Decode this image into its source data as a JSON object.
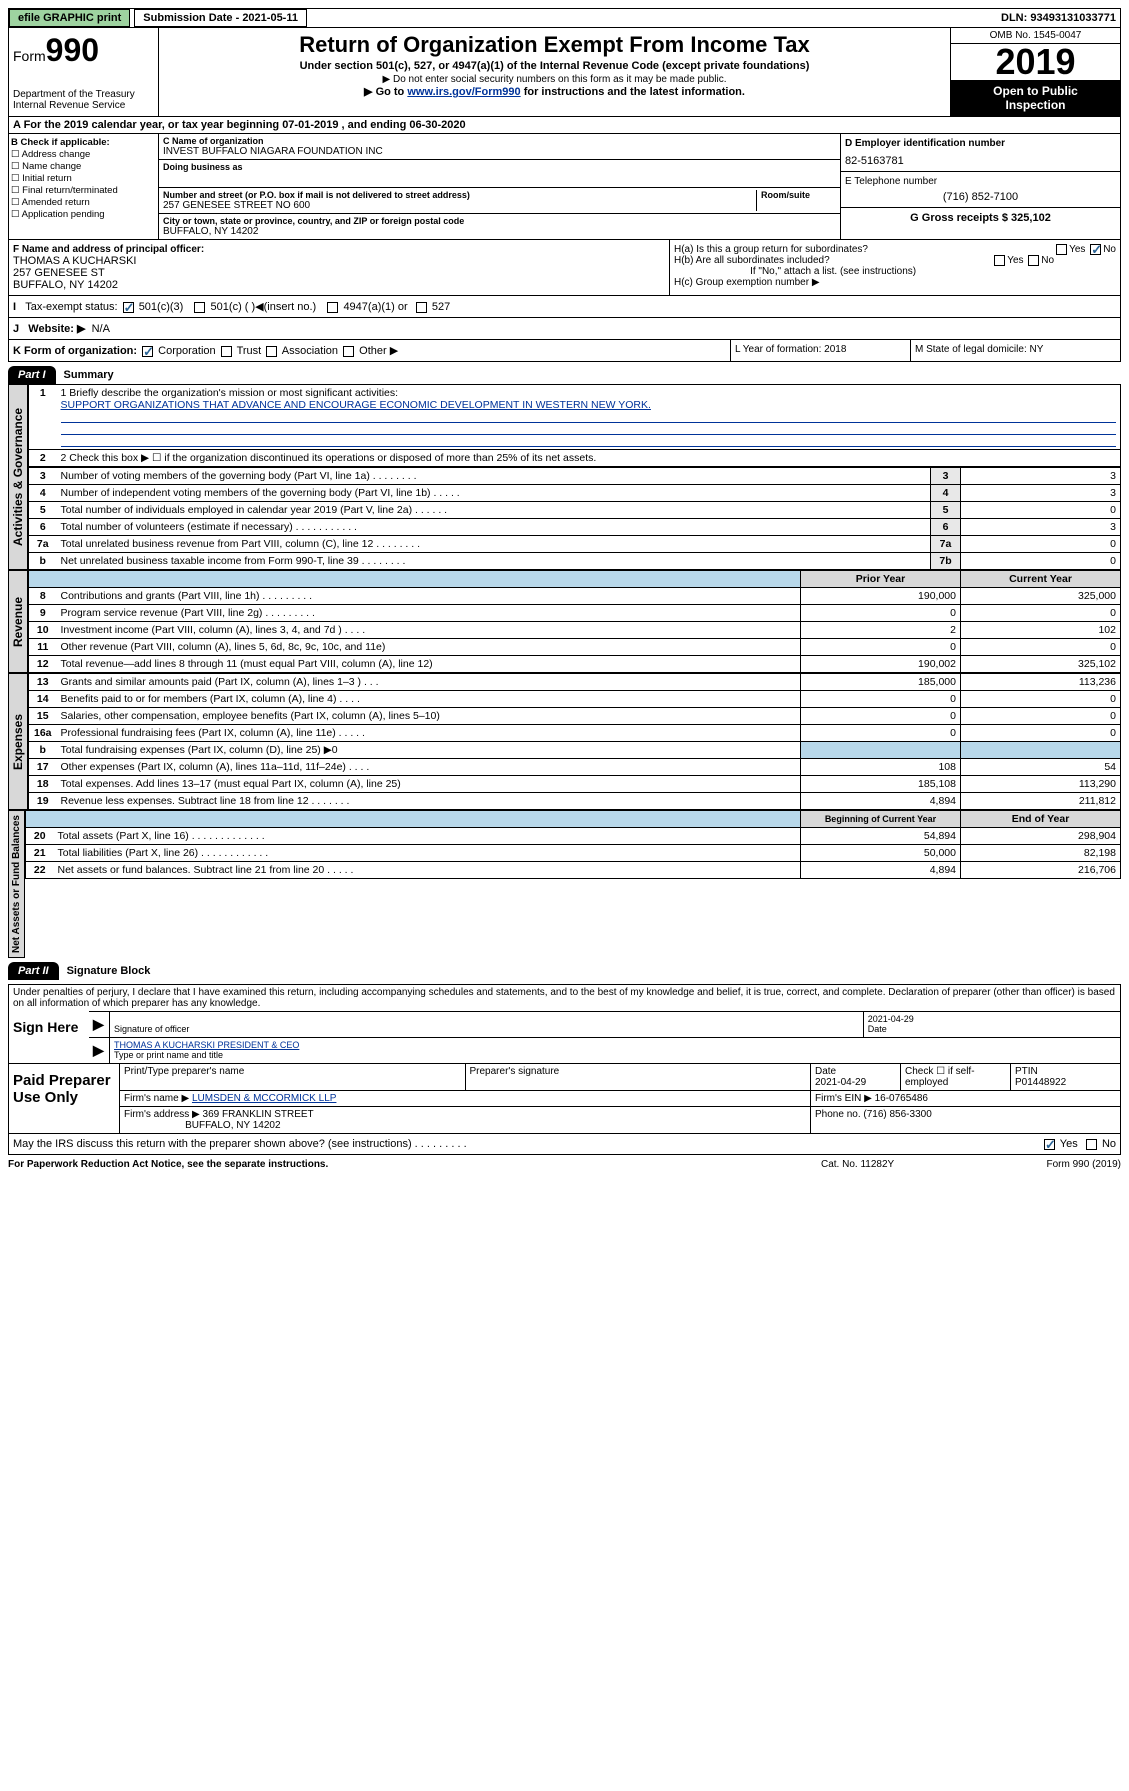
{
  "topbar": {
    "efile": "efile GRAPHIC print",
    "submission": "Submission Date - 2021-05-11",
    "dln": "DLN: 93493131033771"
  },
  "header": {
    "form_label": "Form",
    "form_num": "990",
    "dept": "Department of the Treasury Internal Revenue Service",
    "title": "Return of Organization Exempt From Income Tax",
    "sub1": "Under section 501(c), 527, or 4947(a)(1) of the Internal Revenue Code (except private foundations)",
    "sub2": "▶ Do not enter social security numbers on this form as it may be made public.",
    "sub3_prefix": "▶ Go to ",
    "sub3_link": "www.irs.gov/Form990",
    "sub3_suffix": " for instructions and the latest information.",
    "omb": "OMB No. 1545-0047",
    "year": "2019",
    "public1": "Open to Public",
    "public2": "Inspection"
  },
  "period": "A For the 2019 calendar year, or tax year beginning 07-01-2019     , and ending 06-30-2020",
  "boxB": {
    "label": "B Check if applicable:",
    "addr": "☐ Address change",
    "name": "☐ Name change",
    "init": "☐ Initial return",
    "final": "☐ Final return/terminated",
    "amend": "☐ Amended return",
    "app": "☐ Application pending"
  },
  "boxC": {
    "name_label": "C Name of organization",
    "name_val": "INVEST BUFFALO NIAGARA FOUNDATION INC",
    "dba_label": "Doing business as",
    "addr_label": "Number and street (or P.O. box if mail is not delivered to street address)",
    "room_label": "Room/suite",
    "addr_val": "257 GENESEE STREET NO 600",
    "city_label": "City or town, state or province, country, and ZIP or foreign postal code",
    "city_val": "BUFFALO, NY  14202"
  },
  "boxD": {
    "ein_label": "D Employer identification number",
    "ein_val": "82-5163781",
    "tel_label": "E Telephone number",
    "tel_val": "(716) 852-7100",
    "gross_label": "G Gross receipts $ 325,102"
  },
  "boxF": {
    "label": "F  Name and address of principal officer:",
    "name": "THOMAS A KUCHARSKI",
    "addr1": "257 GENESEE ST",
    "addr2": "BUFFALO, NY  14202"
  },
  "boxH": {
    "ha": "H(a)  Is this a group return for subordinates?",
    "hb": "H(b)  Are all subordinates included?",
    "hb_note": "If \"No,\" attach a list. (see instructions)",
    "hc": "H(c)  Group exemption number ▶",
    "yes": "Yes",
    "no": "No"
  },
  "boxI": {
    "label": "Tax-exempt status:",
    "opt1": "501(c)(3)",
    "opt2": "501(c) (   )◀(insert no.)",
    "opt3": "4947(a)(1) or",
    "opt4": "527"
  },
  "boxJ": {
    "label": "Website: ▶",
    "val": "N/A"
  },
  "boxK": {
    "label": "K Form of organization:",
    "corp": "Corporation",
    "trust": "Trust",
    "assoc": "Association",
    "other": "Other ▶"
  },
  "boxL": {
    "label": "L Year of formation: 2018"
  },
  "boxM": {
    "label": "M State of legal domicile: NY"
  },
  "part1": {
    "tab": "Part I",
    "title": "Summary"
  },
  "summary": {
    "l1_label": "1  Briefly describe the organization's mission or most significant activities:",
    "l1_val": "SUPPORT ORGANIZATIONS THAT ADVANCE AND ENCOURAGE ECONOMIC DEVELOPMENT IN WESTERN NEW YORK.",
    "l2": "2   Check this box ▶ ☐  if the organization discontinued its operations or disposed of more than 25% of its net assets.",
    "rows": [
      {
        "n": "3",
        "d": "Number of voting members of the governing body (Part VI, line 1a)   .    .    .    .    .    .    .    .",
        "b": "3",
        "c": "3"
      },
      {
        "n": "4",
        "d": "Number of independent voting members of the governing body (Part VI, line 1b)   .    .    .    .    .",
        "b": "4",
        "c": "3"
      },
      {
        "n": "5",
        "d": "Total number of individuals employed in calendar year 2019 (Part V, line 2a)   .    .    .    .    .    .",
        "b": "5",
        "c": "0"
      },
      {
        "n": "6",
        "d": "Total number of volunteers (estimate if necessary)   .    .    .    .    .    .    .    .    .    .    .",
        "b": "6",
        "c": "3"
      },
      {
        "n": "7a",
        "d": "Total unrelated business revenue from Part VIII, column (C), line 12   .    .    .    .    .    .    .    .",
        "b": "7a",
        "c": "0"
      },
      {
        "n": "b",
        "d": "Net unrelated business taxable income from Form 990-T, line 39   .    .    .    .    .    .    .    .",
        "b": "7b",
        "c": "0"
      }
    ],
    "hdr_prior": "Prior Year",
    "hdr_curr": "Current Year",
    "rev": [
      {
        "n": "8",
        "d": "Contributions and grants (Part VIII, line 1h)   .    .    .    .    .    .    .    .    .",
        "p": "190,000",
        "c": "325,000"
      },
      {
        "n": "9",
        "d": "Program service revenue (Part VIII, line 2g)   .    .    .    .    .    .    .    .    .",
        "p": "0",
        "c": "0"
      },
      {
        "n": "10",
        "d": "Investment income (Part VIII, column (A), lines 3, 4, and 7d )   .    .    .    .",
        "p": "2",
        "c": "102"
      },
      {
        "n": "11",
        "d": "Other revenue (Part VIII, column (A), lines 5, 6d, 8c, 9c, 10c, and 11e)",
        "p": "0",
        "c": "0"
      },
      {
        "n": "12",
        "d": "Total revenue—add lines 8 through 11 (must equal Part VIII, column (A), line 12)",
        "p": "190,002",
        "c": "325,102"
      }
    ],
    "exp": [
      {
        "n": "13",
        "d": "Grants and similar amounts paid (Part IX, column (A), lines 1–3 )   .    .    .",
        "p": "185,000",
        "c": "113,236"
      },
      {
        "n": "14",
        "d": "Benefits paid to or for members (Part IX, column (A), line 4)   .    .    .    .",
        "p": "0",
        "c": "0"
      },
      {
        "n": "15",
        "d": "Salaries, other compensation, employee benefits (Part IX, column (A), lines 5–10)",
        "p": "0",
        "c": "0"
      },
      {
        "n": "16a",
        "d": "Professional fundraising fees (Part IX, column (A), line 11e)   .    .    .    .    .",
        "p": "0",
        "c": "0"
      },
      {
        "n": "b",
        "d": "Total fundraising expenses (Part IX, column (D), line 25) ▶0",
        "p": "",
        "c": "",
        "shade": true
      },
      {
        "n": "17",
        "d": "Other expenses (Part IX, column (A), lines 11a–11d, 11f–24e)   .    .    .    .",
        "p": "108",
        "c": "54"
      },
      {
        "n": "18",
        "d": "Total expenses. Add lines 13–17 (must equal Part IX, column (A), line 25)",
        "p": "185,108",
        "c": "113,290"
      },
      {
        "n": "19",
        "d": "Revenue less expenses. Subtract line 18 from line 12   .    .    .    .    .    .    .",
        "p": "4,894",
        "c": "211,812"
      }
    ],
    "hdr_beg": "Beginning of Current Year",
    "hdr_end": "End of Year",
    "net": [
      {
        "n": "20",
        "d": "Total assets (Part X, line 16)   .    .    .    .    .    .    .    .    .    .    .    .    .",
        "p": "54,894",
        "c": "298,904"
      },
      {
        "n": "21",
        "d": "Total liabilities (Part X, line 26)   .    .    .    .    .    .    .    .    .    .    .    .",
        "p": "50,000",
        "c": "82,198"
      },
      {
        "n": "22",
        "d": "Net assets or fund balances. Subtract line 21 from line 20   .    .    .    .    .",
        "p": "4,894",
        "c": "216,706"
      }
    ]
  },
  "part2": {
    "tab": "Part II",
    "title": "Signature Block"
  },
  "sig": {
    "intro": "Under penalties of perjury, I declare that I have examined this return, including accompanying schedules and statements, and to the best of my knowledge and belief, it is true, correct, and complete. Declaration of preparer (other than officer) is based on all information of which preparer has any knowledge.",
    "sign_here": "Sign Here",
    "sig_officer": "Signature of officer",
    "date1": "2021-04-29",
    "date_lbl": "Date",
    "name": "THOMAS A KUCHARSKI  PRESIDENT & CEO",
    "name_lbl": "Type or print name and title"
  },
  "paid": {
    "label": "Paid Preparer Use Only",
    "h1": "Print/Type preparer's name",
    "h2": "Preparer's signature",
    "h3": "Date",
    "date": "2021-04-29",
    "h4": "Check ☐ if self-employed",
    "h5": "PTIN",
    "ptin": "P01448922",
    "firm_lbl": "Firm's name      ▶",
    "firm": "LUMSDEN & MCCORMICK LLP",
    "ein_lbl": "Firm's EIN ▶ 16-0765486",
    "addr_lbl": "Firm's address ▶",
    "addr1": "369 FRANKLIN STREET",
    "addr2": "BUFFALO, NY  14202",
    "phone_lbl": "Phone no. (716) 856-3300"
  },
  "discuss": "May the IRS discuss this return with the preparer shown above? (see instructions)   .    .    .    .    .    .    .    .    .",
  "footer": {
    "left": "For Paperwork Reduction Act Notice, see the separate instructions.",
    "mid": "Cat. No. 11282Y",
    "right": "Form 990 (2019)"
  },
  "vlabels": {
    "gov": "Activities & Governance",
    "rev": "Revenue",
    "exp": "Expenses",
    "net": "Net Assets or Fund Balances"
  }
}
